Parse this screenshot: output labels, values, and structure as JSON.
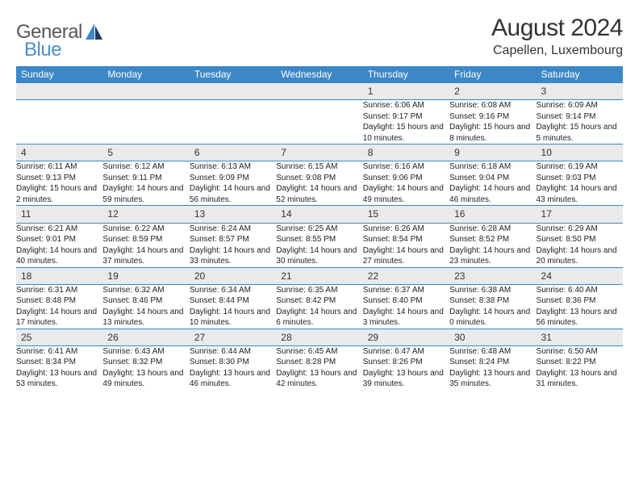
{
  "logo": {
    "text1": "General",
    "text2": "Blue"
  },
  "title": "August 2024",
  "location": "Capellen, Luxembourg",
  "header_bg": "#3d87c6",
  "daynum_bg": "#e8eaec",
  "border_color": "#3d87c6",
  "weekdays": [
    "Sunday",
    "Monday",
    "Tuesday",
    "Wednesday",
    "Thursday",
    "Friday",
    "Saturday"
  ],
  "weeks": [
    [
      null,
      null,
      null,
      null,
      {
        "n": "1",
        "sr": "Sunrise: 6:06 AM",
        "ss": "Sunset: 9:17 PM",
        "dl": "Daylight: 15 hours and 10 minutes."
      },
      {
        "n": "2",
        "sr": "Sunrise: 6:08 AM",
        "ss": "Sunset: 9:16 PM",
        "dl": "Daylight: 15 hours and 8 minutes."
      },
      {
        "n": "3",
        "sr": "Sunrise: 6:09 AM",
        "ss": "Sunset: 9:14 PM",
        "dl": "Daylight: 15 hours and 5 minutes."
      }
    ],
    [
      {
        "n": "4",
        "sr": "Sunrise: 6:11 AM",
        "ss": "Sunset: 9:13 PM",
        "dl": "Daylight: 15 hours and 2 minutes."
      },
      {
        "n": "5",
        "sr": "Sunrise: 6:12 AM",
        "ss": "Sunset: 9:11 PM",
        "dl": "Daylight: 14 hours and 59 minutes."
      },
      {
        "n": "6",
        "sr": "Sunrise: 6:13 AM",
        "ss": "Sunset: 9:09 PM",
        "dl": "Daylight: 14 hours and 56 minutes."
      },
      {
        "n": "7",
        "sr": "Sunrise: 6:15 AM",
        "ss": "Sunset: 9:08 PM",
        "dl": "Daylight: 14 hours and 52 minutes."
      },
      {
        "n": "8",
        "sr": "Sunrise: 6:16 AM",
        "ss": "Sunset: 9:06 PM",
        "dl": "Daylight: 14 hours and 49 minutes."
      },
      {
        "n": "9",
        "sr": "Sunrise: 6:18 AM",
        "ss": "Sunset: 9:04 PM",
        "dl": "Daylight: 14 hours and 46 minutes."
      },
      {
        "n": "10",
        "sr": "Sunrise: 6:19 AM",
        "ss": "Sunset: 9:03 PM",
        "dl": "Daylight: 14 hours and 43 minutes."
      }
    ],
    [
      {
        "n": "11",
        "sr": "Sunrise: 6:21 AM",
        "ss": "Sunset: 9:01 PM",
        "dl": "Daylight: 14 hours and 40 minutes."
      },
      {
        "n": "12",
        "sr": "Sunrise: 6:22 AM",
        "ss": "Sunset: 8:59 PM",
        "dl": "Daylight: 14 hours and 37 minutes."
      },
      {
        "n": "13",
        "sr": "Sunrise: 6:24 AM",
        "ss": "Sunset: 8:57 PM",
        "dl": "Daylight: 14 hours and 33 minutes."
      },
      {
        "n": "14",
        "sr": "Sunrise: 6:25 AM",
        "ss": "Sunset: 8:55 PM",
        "dl": "Daylight: 14 hours and 30 minutes."
      },
      {
        "n": "15",
        "sr": "Sunrise: 6:26 AM",
        "ss": "Sunset: 8:54 PM",
        "dl": "Daylight: 14 hours and 27 minutes."
      },
      {
        "n": "16",
        "sr": "Sunrise: 6:28 AM",
        "ss": "Sunset: 8:52 PM",
        "dl": "Daylight: 14 hours and 23 minutes."
      },
      {
        "n": "17",
        "sr": "Sunrise: 6:29 AM",
        "ss": "Sunset: 8:50 PM",
        "dl": "Daylight: 14 hours and 20 minutes."
      }
    ],
    [
      {
        "n": "18",
        "sr": "Sunrise: 6:31 AM",
        "ss": "Sunset: 8:48 PM",
        "dl": "Daylight: 14 hours and 17 minutes."
      },
      {
        "n": "19",
        "sr": "Sunrise: 6:32 AM",
        "ss": "Sunset: 8:46 PM",
        "dl": "Daylight: 14 hours and 13 minutes."
      },
      {
        "n": "20",
        "sr": "Sunrise: 6:34 AM",
        "ss": "Sunset: 8:44 PM",
        "dl": "Daylight: 14 hours and 10 minutes."
      },
      {
        "n": "21",
        "sr": "Sunrise: 6:35 AM",
        "ss": "Sunset: 8:42 PM",
        "dl": "Daylight: 14 hours and 6 minutes."
      },
      {
        "n": "22",
        "sr": "Sunrise: 6:37 AM",
        "ss": "Sunset: 8:40 PM",
        "dl": "Daylight: 14 hours and 3 minutes."
      },
      {
        "n": "23",
        "sr": "Sunrise: 6:38 AM",
        "ss": "Sunset: 8:38 PM",
        "dl": "Daylight: 14 hours and 0 minutes."
      },
      {
        "n": "24",
        "sr": "Sunrise: 6:40 AM",
        "ss": "Sunset: 8:36 PM",
        "dl": "Daylight: 13 hours and 56 minutes."
      }
    ],
    [
      {
        "n": "25",
        "sr": "Sunrise: 6:41 AM",
        "ss": "Sunset: 8:34 PM",
        "dl": "Daylight: 13 hours and 53 minutes."
      },
      {
        "n": "26",
        "sr": "Sunrise: 6:43 AM",
        "ss": "Sunset: 8:32 PM",
        "dl": "Daylight: 13 hours and 49 minutes."
      },
      {
        "n": "27",
        "sr": "Sunrise: 6:44 AM",
        "ss": "Sunset: 8:30 PM",
        "dl": "Daylight: 13 hours and 46 minutes."
      },
      {
        "n": "28",
        "sr": "Sunrise: 6:45 AM",
        "ss": "Sunset: 8:28 PM",
        "dl": "Daylight: 13 hours and 42 minutes."
      },
      {
        "n": "29",
        "sr": "Sunrise: 6:47 AM",
        "ss": "Sunset: 8:26 PM",
        "dl": "Daylight: 13 hours and 39 minutes."
      },
      {
        "n": "30",
        "sr": "Sunrise: 6:48 AM",
        "ss": "Sunset: 8:24 PM",
        "dl": "Daylight: 13 hours and 35 minutes."
      },
      {
        "n": "31",
        "sr": "Sunrise: 6:50 AM",
        "ss": "Sunset: 8:22 PM",
        "dl": "Daylight: 13 hours and 31 minutes."
      }
    ]
  ]
}
